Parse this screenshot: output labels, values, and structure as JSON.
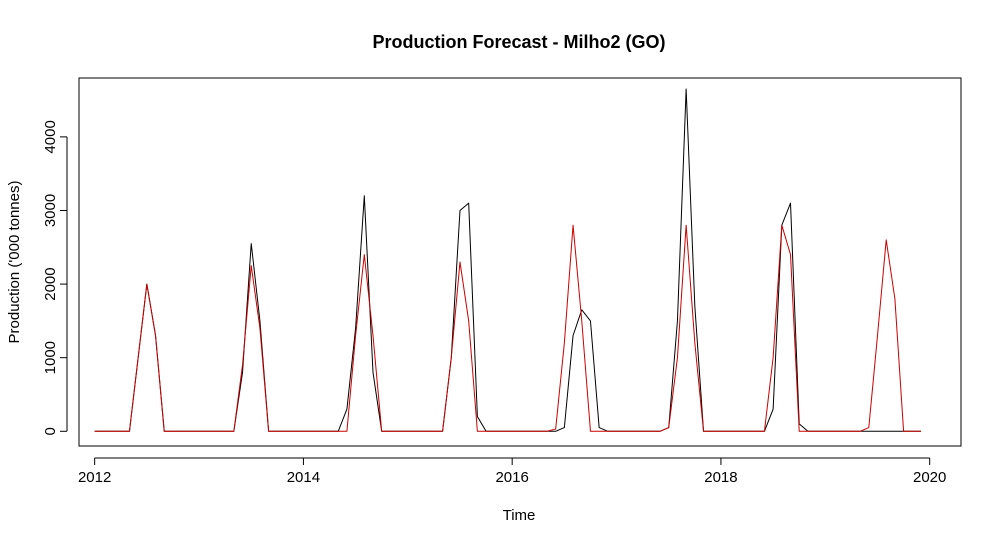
{
  "chart_data": {
    "type": "line",
    "title": "Production Forecast - Milho2 (GO)",
    "xlabel": "Time",
    "ylabel": "Production ('000 tonnes)",
    "xlim": [
      2011.85,
      2020.3
    ],
    "ylim": [
      -200,
      4800
    ],
    "x_ticks": [
      2012,
      2014,
      2016,
      2018,
      2020
    ],
    "y_ticks": [
      0,
      1000,
      2000,
      3000,
      4000
    ],
    "x_start": 2012,
    "x_step": 0.08333333,
    "grid": false,
    "series": [
      {
        "color": "#000000",
        "values": [
          0,
          0,
          0,
          0,
          0,
          1000,
          2000,
          1300,
          0,
          0,
          0,
          0,
          0,
          0,
          0,
          0,
          0,
          800,
          2550,
          1500,
          0,
          0,
          0,
          0,
          0,
          0,
          0,
          0,
          0,
          300,
          1400,
          3200,
          800,
          0,
          0,
          0,
          0,
          0,
          0,
          0,
          0,
          1000,
          3000,
          3100,
          200,
          0,
          0,
          0,
          0,
          0,
          0,
          0,
          0,
          0,
          50,
          1300,
          1650,
          1500,
          50,
          0,
          0,
          0,
          0,
          0,
          0,
          0,
          50,
          1500,
          4650,
          1700,
          0,
          0,
          0,
          0,
          0,
          0,
          0,
          0,
          300,
          2800,
          3100,
          100,
          0,
          0,
          0,
          0,
          0,
          0,
          0,
          0,
          0,
          0,
          0,
          0,
          0,
          0
        ]
      },
      {
        "color": "#cc0000",
        "values": [
          0,
          0,
          0,
          0,
          0,
          1000,
          2000,
          1300,
          0,
          0,
          0,
          0,
          0,
          0,
          0,
          0,
          0,
          900,
          2250,
          1400,
          0,
          0,
          0,
          0,
          0,
          0,
          0,
          0,
          0,
          0,
          1300,
          2400,
          1300,
          0,
          0,
          0,
          0,
          0,
          0,
          0,
          0,
          1000,
          2300,
          1500,
          0,
          0,
          0,
          0,
          0,
          0,
          0,
          0,
          0,
          30,
          1200,
          2800,
          1500,
          0,
          0,
          0,
          0,
          0,
          0,
          0,
          0,
          0,
          50,
          1000,
          2800,
          1200,
          0,
          0,
          0,
          0,
          0,
          0,
          0,
          0,
          1000,
          2800,
          2400,
          0,
          0,
          0,
          0,
          0,
          0,
          0,
          0,
          50,
          1300,
          2600,
          1800,
          0,
          0,
          0
        ]
      }
    ]
  }
}
